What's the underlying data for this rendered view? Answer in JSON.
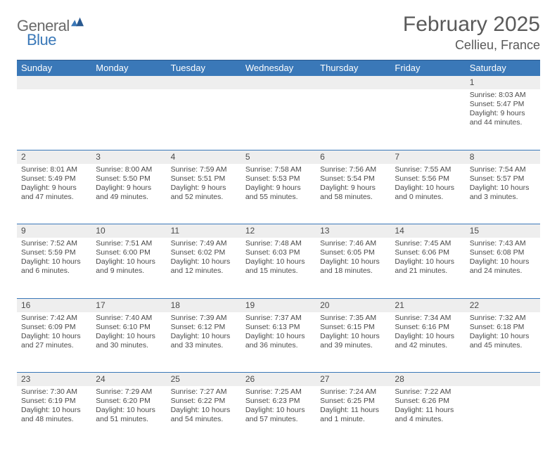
{
  "logo": {
    "text1": "General",
    "text2": "Blue",
    "color_general": "#6a6a6a",
    "color_blue": "#3a78b8"
  },
  "header": {
    "title": "February 2025",
    "location": "Cellieu, France"
  },
  "colors": {
    "header_bg": "#3a78b8",
    "header_fg": "#ffffff",
    "stripe": "#eeeeee",
    "text": "#4a4a4a"
  },
  "day_labels": [
    "Sunday",
    "Monday",
    "Tuesday",
    "Wednesday",
    "Thursday",
    "Friday",
    "Saturday"
  ],
  "weeks": [
    {
      "nums": [
        "",
        "",
        "",
        "",
        "",
        "",
        "1"
      ],
      "cells": [
        null,
        null,
        null,
        null,
        null,
        null,
        {
          "sunrise": "Sunrise: 8:03 AM",
          "sunset": "Sunset: 5:47 PM",
          "dl1": "Daylight: 9 hours",
          "dl2": "and 44 minutes."
        }
      ]
    },
    {
      "nums": [
        "2",
        "3",
        "4",
        "5",
        "6",
        "7",
        "8"
      ],
      "cells": [
        {
          "sunrise": "Sunrise: 8:01 AM",
          "sunset": "Sunset: 5:49 PM",
          "dl1": "Daylight: 9 hours",
          "dl2": "and 47 minutes."
        },
        {
          "sunrise": "Sunrise: 8:00 AM",
          "sunset": "Sunset: 5:50 PM",
          "dl1": "Daylight: 9 hours",
          "dl2": "and 49 minutes."
        },
        {
          "sunrise": "Sunrise: 7:59 AM",
          "sunset": "Sunset: 5:51 PM",
          "dl1": "Daylight: 9 hours",
          "dl2": "and 52 minutes."
        },
        {
          "sunrise": "Sunrise: 7:58 AM",
          "sunset": "Sunset: 5:53 PM",
          "dl1": "Daylight: 9 hours",
          "dl2": "and 55 minutes."
        },
        {
          "sunrise": "Sunrise: 7:56 AM",
          "sunset": "Sunset: 5:54 PM",
          "dl1": "Daylight: 9 hours",
          "dl2": "and 58 minutes."
        },
        {
          "sunrise": "Sunrise: 7:55 AM",
          "sunset": "Sunset: 5:56 PM",
          "dl1": "Daylight: 10 hours",
          "dl2": "and 0 minutes."
        },
        {
          "sunrise": "Sunrise: 7:54 AM",
          "sunset": "Sunset: 5:57 PM",
          "dl1": "Daylight: 10 hours",
          "dl2": "and 3 minutes."
        }
      ]
    },
    {
      "nums": [
        "9",
        "10",
        "11",
        "12",
        "13",
        "14",
        "15"
      ],
      "cells": [
        {
          "sunrise": "Sunrise: 7:52 AM",
          "sunset": "Sunset: 5:59 PM",
          "dl1": "Daylight: 10 hours",
          "dl2": "and 6 minutes."
        },
        {
          "sunrise": "Sunrise: 7:51 AM",
          "sunset": "Sunset: 6:00 PM",
          "dl1": "Daylight: 10 hours",
          "dl2": "and 9 minutes."
        },
        {
          "sunrise": "Sunrise: 7:49 AM",
          "sunset": "Sunset: 6:02 PM",
          "dl1": "Daylight: 10 hours",
          "dl2": "and 12 minutes."
        },
        {
          "sunrise": "Sunrise: 7:48 AM",
          "sunset": "Sunset: 6:03 PM",
          "dl1": "Daylight: 10 hours",
          "dl2": "and 15 minutes."
        },
        {
          "sunrise": "Sunrise: 7:46 AM",
          "sunset": "Sunset: 6:05 PM",
          "dl1": "Daylight: 10 hours",
          "dl2": "and 18 minutes."
        },
        {
          "sunrise": "Sunrise: 7:45 AM",
          "sunset": "Sunset: 6:06 PM",
          "dl1": "Daylight: 10 hours",
          "dl2": "and 21 minutes."
        },
        {
          "sunrise": "Sunrise: 7:43 AM",
          "sunset": "Sunset: 6:08 PM",
          "dl1": "Daylight: 10 hours",
          "dl2": "and 24 minutes."
        }
      ]
    },
    {
      "nums": [
        "16",
        "17",
        "18",
        "19",
        "20",
        "21",
        "22"
      ],
      "cells": [
        {
          "sunrise": "Sunrise: 7:42 AM",
          "sunset": "Sunset: 6:09 PM",
          "dl1": "Daylight: 10 hours",
          "dl2": "and 27 minutes."
        },
        {
          "sunrise": "Sunrise: 7:40 AM",
          "sunset": "Sunset: 6:10 PM",
          "dl1": "Daylight: 10 hours",
          "dl2": "and 30 minutes."
        },
        {
          "sunrise": "Sunrise: 7:39 AM",
          "sunset": "Sunset: 6:12 PM",
          "dl1": "Daylight: 10 hours",
          "dl2": "and 33 minutes."
        },
        {
          "sunrise": "Sunrise: 7:37 AM",
          "sunset": "Sunset: 6:13 PM",
          "dl1": "Daylight: 10 hours",
          "dl2": "and 36 minutes."
        },
        {
          "sunrise": "Sunrise: 7:35 AM",
          "sunset": "Sunset: 6:15 PM",
          "dl1": "Daylight: 10 hours",
          "dl2": "and 39 minutes."
        },
        {
          "sunrise": "Sunrise: 7:34 AM",
          "sunset": "Sunset: 6:16 PM",
          "dl1": "Daylight: 10 hours",
          "dl2": "and 42 minutes."
        },
        {
          "sunrise": "Sunrise: 7:32 AM",
          "sunset": "Sunset: 6:18 PM",
          "dl1": "Daylight: 10 hours",
          "dl2": "and 45 minutes."
        }
      ]
    },
    {
      "nums": [
        "23",
        "24",
        "25",
        "26",
        "27",
        "28",
        ""
      ],
      "cells": [
        {
          "sunrise": "Sunrise: 7:30 AM",
          "sunset": "Sunset: 6:19 PM",
          "dl1": "Daylight: 10 hours",
          "dl2": "and 48 minutes."
        },
        {
          "sunrise": "Sunrise: 7:29 AM",
          "sunset": "Sunset: 6:20 PM",
          "dl1": "Daylight: 10 hours",
          "dl2": "and 51 minutes."
        },
        {
          "sunrise": "Sunrise: 7:27 AM",
          "sunset": "Sunset: 6:22 PM",
          "dl1": "Daylight: 10 hours",
          "dl2": "and 54 minutes."
        },
        {
          "sunrise": "Sunrise: 7:25 AM",
          "sunset": "Sunset: 6:23 PM",
          "dl1": "Daylight: 10 hours",
          "dl2": "and 57 minutes."
        },
        {
          "sunrise": "Sunrise: 7:24 AM",
          "sunset": "Sunset: 6:25 PM",
          "dl1": "Daylight: 11 hours",
          "dl2": "and 1 minute."
        },
        {
          "sunrise": "Sunrise: 7:22 AM",
          "sunset": "Sunset: 6:26 PM",
          "dl1": "Daylight: 11 hours",
          "dl2": "and 4 minutes."
        },
        null
      ]
    }
  ]
}
